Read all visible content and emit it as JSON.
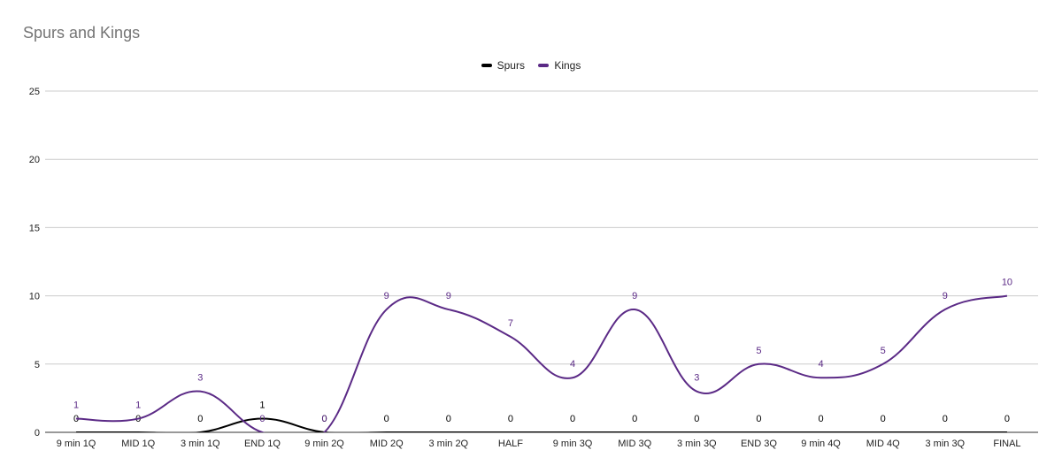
{
  "chart_data": {
    "type": "line",
    "title": "Spurs and Kings",
    "xlabel": "",
    "ylabel": "",
    "ylim": [
      0,
      25
    ],
    "yticks": [
      0,
      5,
      10,
      15,
      20,
      25
    ],
    "grid": true,
    "legend_position": "top-center",
    "categories": [
      "9 min 1Q",
      "MID 1Q",
      "3 min 1Q",
      "END 1Q",
      "9 min 2Q",
      "MID 2Q",
      "3 min 2Q",
      "HALF",
      "9 min 3Q",
      "MID 3Q",
      "3 min 3Q",
      "END 3Q",
      "9 min 4Q",
      "MID 4Q",
      "3 min 3Q",
      "FINAL"
    ],
    "series": [
      {
        "name": "Spurs",
        "color": "#000000",
        "values": [
          0,
          0,
          0,
          1,
          0,
          0,
          0,
          0,
          0,
          0,
          0,
          0,
          0,
          0,
          0,
          0
        ]
      },
      {
        "name": "Kings",
        "color": "#5b2a86",
        "values": [
          1,
          1,
          3,
          0,
          0,
          9,
          9,
          7,
          4,
          9,
          3,
          5,
          4,
          5,
          9,
          10
        ]
      }
    ]
  }
}
